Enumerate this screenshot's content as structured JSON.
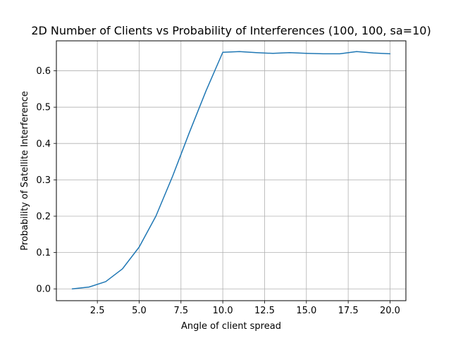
{
  "chart_data": {
    "type": "line",
    "title": "2D Number of Clients vs Probability of Interferences (100, 100, sa=10)",
    "xlabel": "Angle of client spread",
    "ylabel": "Probability of Satellite Interference",
    "xlim": [
      0.05,
      20.95
    ],
    "ylim": [
      -0.0325,
      0.6825
    ],
    "xticks": [
      2.5,
      5.0,
      7.5,
      10.0,
      12.5,
      15.0,
      17.5,
      20.0
    ],
    "xtick_labels": [
      "2.5",
      "5.0",
      "7.5",
      "10.0",
      "12.5",
      "15.0",
      "17.5",
      "20.0"
    ],
    "yticks": [
      0.0,
      0.1,
      0.2,
      0.3,
      0.4,
      0.5,
      0.6
    ],
    "ytick_labels": [
      "0.0",
      "0.1",
      "0.2",
      "0.3",
      "0.4",
      "0.5",
      "0.6"
    ],
    "grid": true,
    "series": [
      {
        "color": "#1f77b4",
        "x": [
          1,
          2,
          3,
          4,
          5,
          6,
          7,
          8,
          9,
          10,
          11,
          12,
          13,
          14,
          15,
          16,
          17,
          18,
          19,
          20
        ],
        "y": [
          0.0,
          0.005,
          0.02,
          0.055,
          0.115,
          0.2,
          0.31,
          0.43,
          0.545,
          0.651,
          0.653,
          0.65,
          0.648,
          0.65,
          0.648,
          0.647,
          0.647,
          0.653,
          0.649,
          0.647
        ]
      }
    ]
  }
}
